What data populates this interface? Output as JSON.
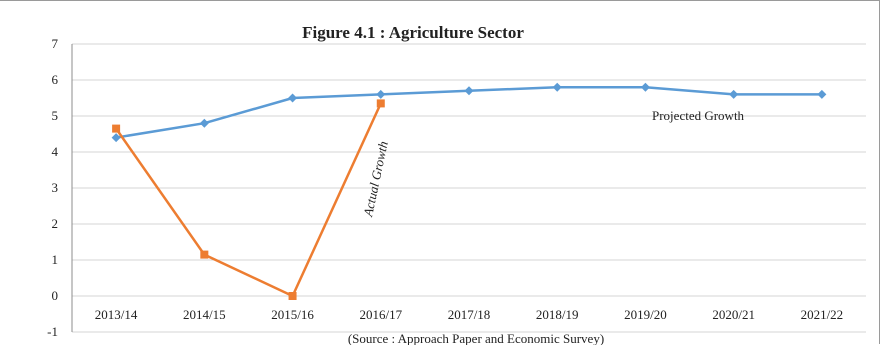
{
  "chart_data": {
    "type": "line",
    "title": "Figure 4.1 : Agriculture  Sector",
    "categories": [
      "2013/14",
      "2014/15",
      "2015/16",
      "2016/17",
      "2017/18",
      "2018/19",
      "2019/20",
      "2020/21",
      "2021/22"
    ],
    "yticks": [
      "7",
      "6",
      "5",
      "4",
      "3",
      "2",
      "1",
      "0",
      "-1"
    ],
    "ylim": [
      -1,
      7
    ],
    "grid": true,
    "series": [
      {
        "name": "Projected Growth",
        "color": "#5b9bd5",
        "marker": "diamond",
        "values": [
          4.4,
          4.8,
          5.5,
          5.6,
          5.7,
          5.8,
          5.8,
          5.6,
          5.6
        ]
      },
      {
        "name": "Actual Growth",
        "color": "#ed7d31",
        "marker": "square",
        "values": [
          4.65,
          1.15,
          0.0,
          5.35,
          null,
          null,
          null,
          null,
          null
        ]
      }
    ],
    "source": "(Source : Approach Paper and Economic Survey)"
  }
}
